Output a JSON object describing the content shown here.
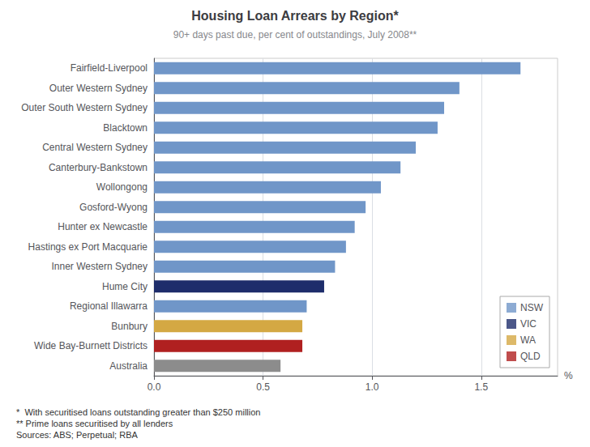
{
  "chart_data": {
    "type": "bar",
    "orientation": "horizontal",
    "title": "Housing Loan Arrears by Region*",
    "subtitle": "90+ days past due, per cent of outstandings, July 2008**",
    "annotations": [
      "*  With securitised loans outstanding greater than $250 million",
      "** Prime loans securitised by all lenders",
      "Sources: ABS; Perpetual; RBA"
    ],
    "categories": [
      "Fairfield-Liverpool",
      "Outer Western Sydney",
      "Outer South Western Sydney",
      "Blacktown",
      "Central Western Sydney",
      "Canterbury-Bankstown",
      "Wollongong",
      "Gosford-Wyong",
      "Hunter ex Newcastle",
      "Hastings ex Port Macquarie",
      "Inner Western Sydney",
      "Hume City",
      "Regional Illawarra",
      "Bunbury",
      "Wide Bay-Burnett Districts",
      "Australia"
    ],
    "values": [
      1.68,
      1.4,
      1.33,
      1.3,
      1.2,
      1.13,
      1.04,
      0.97,
      0.92,
      0.88,
      0.83,
      0.78,
      0.7,
      0.68,
      0.68,
      0.58
    ],
    "colors": [
      "#7096c8",
      "#7096c8",
      "#7096c8",
      "#7096c8",
      "#7096c8",
      "#7096c8",
      "#7096c8",
      "#7096c8",
      "#7096c8",
      "#7096c8",
      "#7096c8",
      "#1e2d6b",
      "#7096c8",
      "#d4a843",
      "#b02020",
      "#8c8c8c"
    ],
    "legend_entries": [
      {
        "name": "NSW",
        "color": "#7096c8"
      },
      {
        "name": "VIC",
        "color": "#1e2d6b"
      },
      {
        "name": "WA",
        "color": "#d4a843"
      },
      {
        "name": "QLD",
        "color": "#b02020"
      }
    ],
    "legend": "lower right",
    "xlabel": "%",
    "xlim": [
      0,
      1.85
    ],
    "xticks": [
      {
        "value": 0,
        "label": "0.0"
      },
      {
        "value": 0.5,
        "label": "0.5"
      },
      {
        "value": 1,
        "label": "1.0"
      },
      {
        "value": 1.5,
        "label": "1.5"
      }
    ],
    "grid": true
  }
}
